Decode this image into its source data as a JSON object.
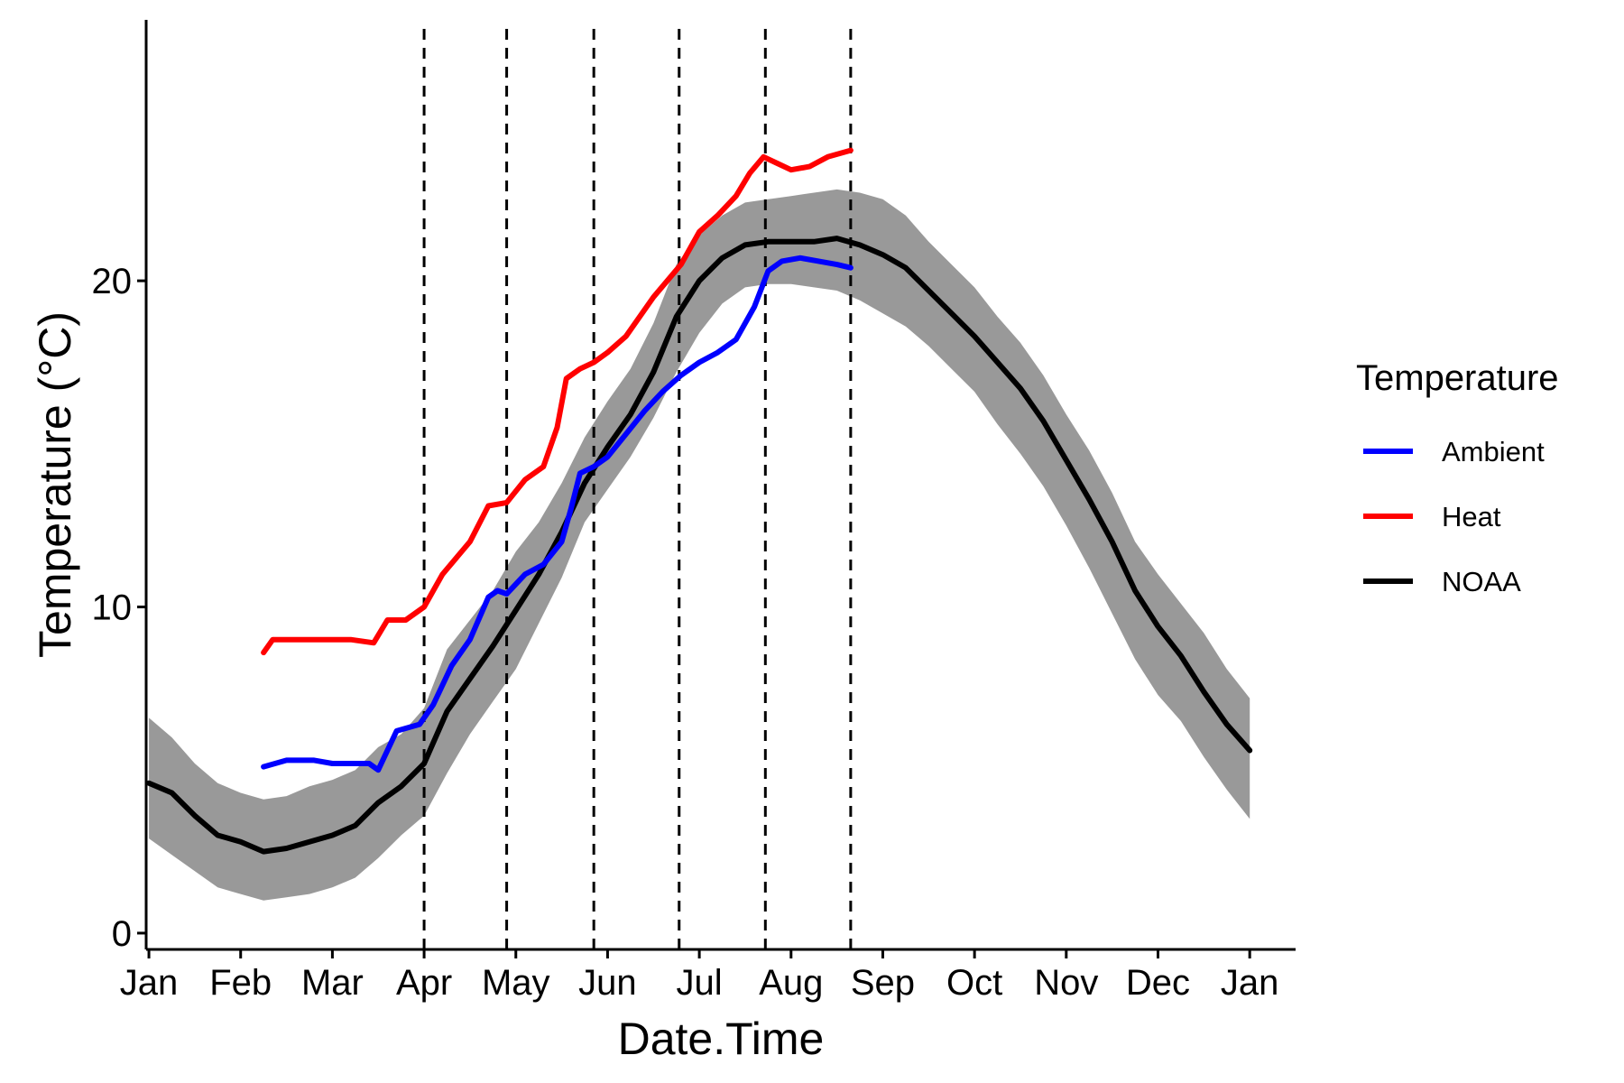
{
  "chart_data": {
    "type": "line",
    "xlabel": "Date.Time",
    "ylabel": "Temperature (°C)",
    "x_ticks": [
      "Jan",
      "Feb",
      "Mar",
      "Apr",
      "May",
      "Jun",
      "Jul",
      "Aug",
      "Sep",
      "Oct",
      "Nov",
      "Dec",
      "Jan"
    ],
    "y_ticks": [
      0,
      10,
      20
    ],
    "ylim": [
      -0.5,
      28
    ],
    "xlim": [
      -0.03,
      12.5
    ],
    "grid": false,
    "legend": {
      "title": "Temperature",
      "position": "right",
      "entries": [
        "Ambient",
        "Heat",
        "NOAA"
      ]
    },
    "vertical_lines": [
      3.0,
      3.9,
      4.85,
      5.78,
      6.72,
      7.65
    ],
    "series": [
      {
        "name": "Ambient",
        "color": "#0000ff",
        "x": [
          1.25,
          1.5,
          1.8,
          2.0,
          2.2,
          2.4,
          2.5,
          2.7,
          2.95,
          3.1,
          3.3,
          3.5,
          3.7,
          3.8,
          3.9,
          4.1,
          4.3,
          4.5,
          4.6,
          4.7,
          4.85,
          5.0,
          5.2,
          5.4,
          5.6,
          5.8,
          6.0,
          6.2,
          6.4,
          6.6,
          6.75,
          6.9,
          7.1,
          7.3,
          7.5,
          7.65
        ],
        "y": [
          5.1,
          5.3,
          5.3,
          5.2,
          5.2,
          5.2,
          5.0,
          6.2,
          6.4,
          7.0,
          8.2,
          9.0,
          10.3,
          10.5,
          10.4,
          11.0,
          11.3,
          12.0,
          13.0,
          14.1,
          14.3,
          14.6,
          15.3,
          16.0,
          16.6,
          17.1,
          17.5,
          17.8,
          18.2,
          19.2,
          20.3,
          20.6,
          20.7,
          20.6,
          20.5,
          20.4
        ]
      },
      {
        "name": "Heat",
        "color": "#ff0000",
        "x": [
          1.25,
          1.35,
          1.6,
          2.0,
          2.2,
          2.45,
          2.6,
          2.8,
          3.0,
          3.2,
          3.5,
          3.7,
          3.9,
          4.1,
          4.3,
          4.45,
          4.55,
          4.7,
          4.85,
          5.0,
          5.2,
          5.5,
          5.8,
          6.0,
          6.2,
          6.4,
          6.55,
          6.7,
          6.85,
          7.0,
          7.2,
          7.4,
          7.65
        ],
        "y": [
          8.6,
          9.0,
          9.0,
          9.0,
          9.0,
          8.9,
          9.6,
          9.6,
          10.0,
          11.0,
          12.0,
          13.1,
          13.2,
          13.9,
          14.3,
          15.5,
          17.0,
          17.3,
          17.5,
          17.8,
          18.3,
          19.5,
          20.5,
          21.5,
          22.0,
          22.6,
          23.3,
          23.8,
          23.6,
          23.4,
          23.5,
          23.8,
          24.0
        ]
      },
      {
        "name": "NOAA",
        "color": "#000000",
        "x": [
          0,
          0.25,
          0.5,
          0.75,
          1.0,
          1.25,
          1.5,
          1.75,
          2.0,
          2.25,
          2.5,
          2.75,
          3.0,
          3.25,
          3.5,
          3.75,
          4.0,
          4.25,
          4.5,
          4.75,
          5.0,
          5.25,
          5.5,
          5.75,
          6.0,
          6.25,
          6.5,
          6.75,
          7.0,
          7.25,
          7.5,
          7.75,
          8.0,
          8.25,
          8.5,
          8.75,
          9.0,
          9.25,
          9.5,
          9.75,
          10.0,
          10.25,
          10.5,
          10.75,
          11.0,
          11.25,
          11.5,
          11.75,
          12.0
        ],
        "y": [
          4.6,
          4.3,
          3.6,
          3.0,
          2.8,
          2.5,
          2.6,
          2.8,
          3.0,
          3.3,
          4.0,
          4.5,
          5.2,
          6.8,
          7.8,
          8.8,
          9.9,
          11.0,
          12.3,
          13.8,
          14.9,
          15.9,
          17.2,
          18.9,
          20.0,
          20.7,
          21.1,
          21.2,
          21.2,
          21.2,
          21.3,
          21.1,
          20.8,
          20.4,
          19.7,
          19.0,
          18.3,
          17.5,
          16.7,
          15.7,
          14.5,
          13.3,
          12.0,
          10.5,
          9.4,
          8.5,
          7.4,
          6.4,
          5.6
        ]
      }
    ],
    "bands": [
      {
        "name": "NOAA",
        "color": "#999999",
        "x": [
          0,
          0.25,
          0.5,
          0.75,
          1.0,
          1.25,
          1.5,
          1.75,
          2.0,
          2.25,
          2.5,
          2.75,
          3.0,
          3.25,
          3.5,
          3.75,
          4.0,
          4.25,
          4.5,
          4.75,
          5.0,
          5.25,
          5.5,
          5.75,
          6.0,
          6.25,
          6.5,
          6.75,
          7.0,
          7.25,
          7.5,
          7.75,
          8.0,
          8.25,
          8.5,
          8.75,
          9.0,
          9.25,
          9.5,
          9.75,
          10.0,
          10.25,
          10.5,
          10.75,
          11.0,
          11.25,
          11.5,
          11.75,
          12.0
        ],
        "lower": [
          2.9,
          2.4,
          1.9,
          1.4,
          1.2,
          1.0,
          1.1,
          1.2,
          1.4,
          1.7,
          2.3,
          3.0,
          3.6,
          4.9,
          6.1,
          7.1,
          8.1,
          9.5,
          10.9,
          12.6,
          13.6,
          14.6,
          15.8,
          17.2,
          18.4,
          19.3,
          19.8,
          19.9,
          19.9,
          19.8,
          19.7,
          19.4,
          19.0,
          18.6,
          18.0,
          17.3,
          16.6,
          15.6,
          14.7,
          13.7,
          12.5,
          11.2,
          9.8,
          8.4,
          7.3,
          6.5,
          5.4,
          4.4,
          3.5
        ],
        "upper": [
          6.6,
          6.0,
          5.2,
          4.6,
          4.3,
          4.1,
          4.2,
          4.5,
          4.7,
          5.0,
          5.7,
          6.1,
          6.9,
          8.7,
          9.6,
          10.5,
          11.7,
          12.6,
          13.8,
          15.2,
          16.3,
          17.3,
          18.7,
          20.5,
          21.4,
          22.0,
          22.4,
          22.5,
          22.6,
          22.7,
          22.8,
          22.7,
          22.5,
          22.0,
          21.2,
          20.5,
          19.8,
          18.9,
          18.1,
          17.1,
          15.9,
          14.8,
          13.5,
          12.0,
          11.0,
          10.1,
          9.2,
          8.1,
          7.2
        ]
      }
    ]
  }
}
